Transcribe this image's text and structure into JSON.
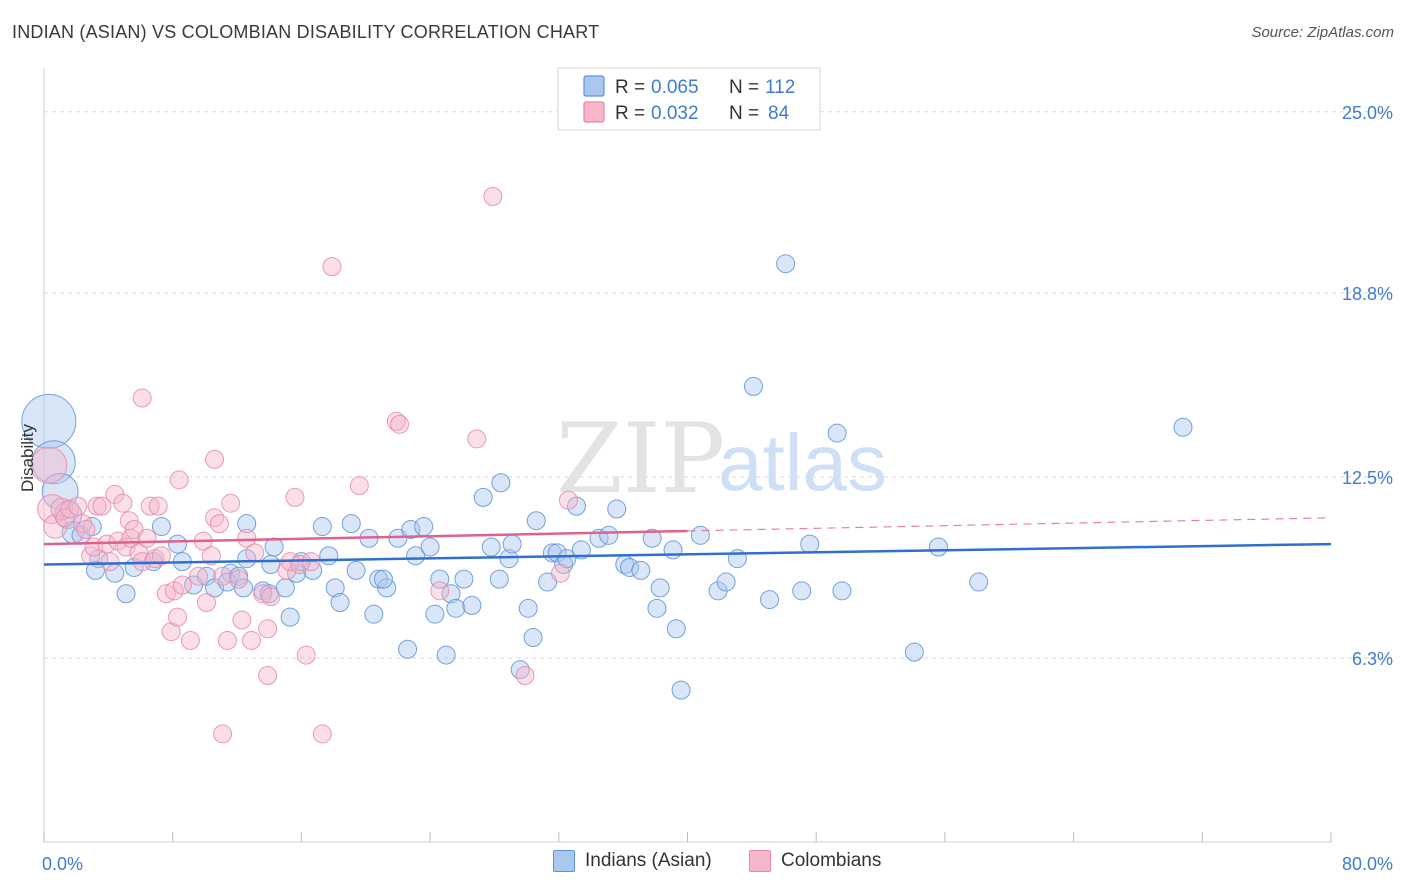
{
  "title": "INDIAN (ASIAN) VS COLOMBIAN DISABILITY CORRELATION CHART",
  "source": "Source: ZipAtlas.com",
  "watermark": {
    "zip": "ZIP",
    "atlas": "atlas"
  },
  "colors": {
    "blue_fill": "#aac8ef",
    "blue_stroke": "#5d92d8",
    "blue_line": "#2f6fcf",
    "pink_fill": "#f5b6cc",
    "pink_stroke": "#e889a8",
    "pink_line": "#e0628b",
    "axis_text": "#3f7bd2",
    "grid": "#d8d8d8"
  },
  "legend_top": [
    {
      "r_label": "R =",
      "r_value": "0.065",
      "n_label": "N =",
      "n_value": "112",
      "color": "blue"
    },
    {
      "r_label": "R =",
      "r_value": "0.032",
      "n_label": "N =",
      "n_value": "84",
      "color": "pink"
    }
  ],
  "legend_bottom": [
    {
      "label": "Indians (Asian)",
      "color": "blue"
    },
    {
      "label": "Colombians",
      "color": "pink"
    }
  ],
  "chart_data": {
    "type": "scatter",
    "title": "INDIAN (ASIAN) VS COLOMBIAN DISABILITY CORRELATION CHART",
    "xlabel": "",
    "ylabel": "Disability",
    "xlim": [
      0,
      80
    ],
    "ylim": [
      0,
      26.5
    ],
    "x_tick_labels": [
      {
        "value": 0,
        "label": "0.0%"
      },
      {
        "value": 80,
        "label": "80.0%"
      }
    ],
    "y_ticks": [
      {
        "value": 6.3,
        "label": "6.3%"
      },
      {
        "value": 12.5,
        "label": "12.5%"
      },
      {
        "value": 18.8,
        "label": "18.8%"
      },
      {
        "value": 25.0,
        "label": "25.0%"
      }
    ],
    "x_minor_ticks": [
      0,
      8,
      16,
      24,
      32,
      40,
      48,
      56,
      64,
      72,
      80
    ],
    "series": [
      {
        "name": "Indians (Asian)",
        "color": "blue",
        "R": 0.065,
        "N": 112,
        "trend": {
          "x0": 0,
          "y0": 9.5,
          "x1": 80,
          "y1": 10.2,
          "dashed_from": null
        },
        "points": [
          [
            0.3,
            14.4,
            3
          ],
          [
            0.6,
            13,
            2.4
          ],
          [
            1,
            12,
            2
          ],
          [
            1.5,
            11.2,
            1.5
          ],
          [
            1.8,
            10.6,
            1.2
          ],
          [
            2.3,
            10.5,
            1
          ],
          [
            3,
            10.8,
            1
          ],
          [
            3.4,
            9.7,
            1
          ],
          [
            3.2,
            9.3,
            1
          ],
          [
            4.4,
            9.2,
            1
          ],
          [
            5.6,
            9.4,
            1
          ],
          [
            5.1,
            8.5,
            1
          ],
          [
            6.8,
            9.6,
            1
          ],
          [
            7.3,
            10.8,
            1
          ],
          [
            8.3,
            10.2,
            1
          ],
          [
            8.6,
            9.6,
            1
          ],
          [
            9.3,
            8.8,
            1
          ],
          [
            10.1,
            9.1,
            1
          ],
          [
            10.6,
            8.7,
            1
          ],
          [
            11.6,
            9.2,
            1
          ],
          [
            11.4,
            8.9,
            1
          ],
          [
            12.1,
            9.1,
            1
          ],
          [
            12.4,
            8.7,
            1
          ],
          [
            12.6,
            10.9,
            1
          ],
          [
            12.6,
            9.7,
            1
          ],
          [
            13.6,
            8.6,
            1
          ],
          [
            14,
            8.5,
            1
          ],
          [
            14.1,
            9.5,
            1
          ],
          [
            14.3,
            10.1,
            1
          ],
          [
            15,
            8.7,
            1
          ],
          [
            15.3,
            7.7,
            1
          ],
          [
            15.7,
            9.2,
            1
          ],
          [
            16,
            9.6,
            1
          ],
          [
            16.7,
            9.3,
            1
          ],
          [
            17.3,
            10.8,
            1
          ],
          [
            17.7,
            9.8,
            1
          ],
          [
            18.1,
            8.7,
            1
          ],
          [
            18.4,
            8.2,
            1
          ],
          [
            19.1,
            10.9,
            1
          ],
          [
            19.4,
            9.3,
            1
          ],
          [
            20.2,
            10.4,
            1
          ],
          [
            20.5,
            7.8,
            1
          ],
          [
            20.8,
            9,
            1
          ],
          [
            21.3,
            8.7,
            1
          ],
          [
            21.1,
            9,
            1
          ],
          [
            22,
            10.4,
            1
          ],
          [
            22.6,
            6.6,
            1
          ],
          [
            22.8,
            10.7,
            1
          ],
          [
            23.1,
            9.8,
            1
          ],
          [
            23.6,
            10.8,
            1
          ],
          [
            24,
            10.1,
            1
          ],
          [
            24.3,
            7.8,
            1
          ],
          [
            24.6,
            9,
            1
          ],
          [
            25,
            6.4,
            1
          ],
          [
            25.3,
            8.5,
            1
          ],
          [
            25.6,
            8,
            1
          ],
          [
            26.1,
            9,
            1
          ],
          [
            26.6,
            8.1,
            1
          ],
          [
            27.3,
            11.8,
            1
          ],
          [
            27.8,
            10.1,
            1
          ],
          [
            28.3,
            9,
            1
          ],
          [
            28.4,
            12.3,
            1
          ],
          [
            28.9,
            9.7,
            1
          ],
          [
            29.1,
            10.2,
            1
          ],
          [
            29.6,
            5.9,
            1
          ],
          [
            30.1,
            8,
            1
          ],
          [
            30.4,
            7,
            1
          ],
          [
            30.6,
            11,
            1
          ],
          [
            31.3,
            8.9,
            1
          ],
          [
            31.6,
            9.9,
            1
          ],
          [
            31.9,
            9.9,
            1
          ],
          [
            32.3,
            9.5,
            1
          ],
          [
            32.5,
            9.7,
            1
          ],
          [
            33.1,
            11.5,
            1
          ],
          [
            33.4,
            10,
            1
          ],
          [
            34.5,
            10.4,
            1
          ],
          [
            35.1,
            10.5,
            1
          ],
          [
            35.6,
            11.4,
            1
          ],
          [
            36.1,
            9.5,
            1
          ],
          [
            36.4,
            9.4,
            1
          ],
          [
            37.1,
            9.3,
            1
          ],
          [
            37.8,
            10.4,
            1
          ],
          [
            38.3,
            8.7,
            1
          ],
          [
            38.1,
            8,
            1
          ],
          [
            39.1,
            10,
            1
          ],
          [
            39.3,
            7.3,
            1
          ],
          [
            39.6,
            5.2,
            1
          ],
          [
            40.8,
            10.5,
            1
          ],
          [
            41.9,
            8.6,
            1
          ],
          [
            42.4,
            8.9,
            1
          ],
          [
            43.1,
            9.7,
            1
          ],
          [
            44.1,
            15.6,
            1
          ],
          [
            45.1,
            8.3,
            1
          ],
          [
            46.1,
            19.8,
            1
          ],
          [
            47.1,
            8.6,
            1
          ],
          [
            47.6,
            10.2,
            1
          ],
          [
            49.3,
            14,
            1
          ],
          [
            49.6,
            8.6,
            1
          ],
          [
            54.1,
            6.5,
            1
          ],
          [
            55.6,
            10.1,
            1
          ],
          [
            58.1,
            8.9,
            1
          ],
          [
            70.8,
            14.2,
            1
          ]
        ]
      },
      {
        "name": "Colombians",
        "color": "pink",
        "R": 0.032,
        "N": 84,
        "trend": {
          "x0": 0,
          "y0": 10.2,
          "x1": 80,
          "y1": 11.1,
          "dashed_from": 40
        },
        "points": [
          [
            0.3,
            12.9,
            2
          ],
          [
            0.5,
            11.4,
            1.6
          ],
          [
            0.7,
            10.8,
            1.3
          ],
          [
            1.1,
            11.4,
            1.2
          ],
          [
            1.3,
            11.1,
            1
          ],
          [
            1.6,
            11.4,
            1
          ],
          [
            2.1,
            11.5,
            1
          ],
          [
            2.4,
            10.9,
            1
          ],
          [
            2.6,
            10.7,
            1
          ],
          [
            2.9,
            9.8,
            1
          ],
          [
            3.1,
            10.1,
            1
          ],
          [
            3.3,
            11.5,
            1
          ],
          [
            3.6,
            11.5,
            1
          ],
          [
            3.9,
            10.2,
            1
          ],
          [
            4.1,
            9.6,
            1
          ],
          [
            4.4,
            11.9,
            1
          ],
          [
            4.6,
            10.3,
            1
          ],
          [
            4.9,
            11.6,
            1
          ],
          [
            5.1,
            10.1,
            1
          ],
          [
            5.3,
            11,
            1
          ],
          [
            5.4,
            10.4,
            1
          ],
          [
            5.6,
            10.7,
            1
          ],
          [
            5.9,
            9.9,
            1
          ],
          [
            6.1,
            9.6,
            1
          ],
          [
            6.1,
            15.2,
            1
          ],
          [
            6.4,
            10.4,
            1
          ],
          [
            6.6,
            11.5,
            1
          ],
          [
            6.9,
            9.7,
            1
          ],
          [
            7.1,
            11.5,
            1
          ],
          [
            7.3,
            9.8,
            1
          ],
          [
            7.6,
            8.5,
            1
          ],
          [
            7.9,
            7.2,
            1
          ],
          [
            8.1,
            8.6,
            1
          ],
          [
            8.3,
            7.7,
            1
          ],
          [
            8.4,
            12.4,
            1
          ],
          [
            8.6,
            8.8,
            1
          ],
          [
            9.1,
            6.9,
            1
          ],
          [
            9.6,
            9.1,
            1
          ],
          [
            9.9,
            10.3,
            1
          ],
          [
            10.1,
            8.2,
            1
          ],
          [
            10.4,
            9.8,
            1
          ],
          [
            10.6,
            11.1,
            1
          ],
          [
            10.6,
            13.1,
            1
          ],
          [
            10.9,
            10.9,
            1
          ],
          [
            11.1,
            9.1,
            1
          ],
          [
            11.1,
            3.7,
            1
          ],
          [
            11.4,
            6.9,
            1
          ],
          [
            11.6,
            11.6,
            1
          ],
          [
            12.1,
            9,
            1
          ],
          [
            12.3,
            7.6,
            1
          ],
          [
            12.6,
            10.4,
            1
          ],
          [
            12.9,
            6.9,
            1
          ],
          [
            13.1,
            9.9,
            1
          ],
          [
            13.6,
            8.5,
            1
          ],
          [
            13.9,
            7.3,
            1
          ],
          [
            14.1,
            8.4,
            1
          ],
          [
            15.1,
            9.3,
            1
          ],
          [
            15.3,
            9.6,
            1
          ],
          [
            15.6,
            11.8,
            1
          ],
          [
            15.9,
            9.5,
            1
          ],
          [
            16.3,
            6.4,
            1
          ],
          [
            16.6,
            9.6,
            1
          ],
          [
            17.3,
            3.7,
            1
          ],
          [
            17.9,
            19.7,
            1
          ],
          [
            19.6,
            12.2,
            1
          ],
          [
            21.9,
            14.4,
            1
          ],
          [
            22.1,
            14.3,
            1
          ],
          [
            24.6,
            8.6,
            1
          ],
          [
            26.9,
            13.8,
            1
          ],
          [
            27.9,
            22.1,
            1
          ],
          [
            29.9,
            5.7,
            1
          ],
          [
            32.1,
            9.2,
            1
          ],
          [
            32.6,
            11.7,
            1
          ],
          [
            13.9,
            5.7,
            1
          ]
        ]
      }
    ]
  }
}
